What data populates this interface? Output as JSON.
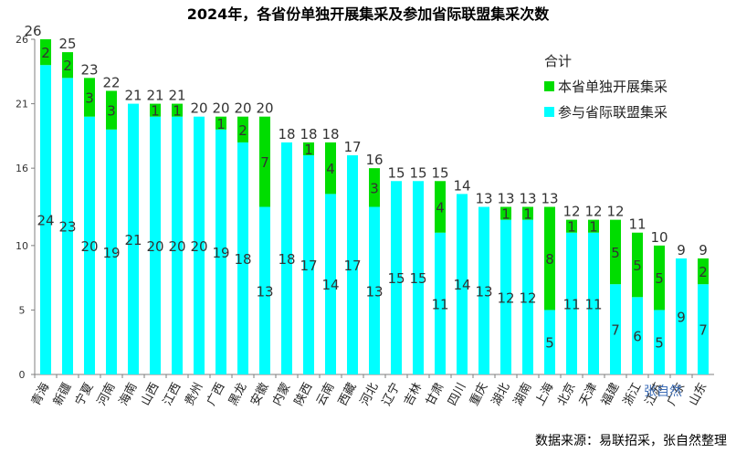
{
  "title": "2024年，各省份单独开展集采及参加省际联盟集采次数",
  "source": "数据来源：易联招采，张自然整理",
  "watermark": "张自然",
  "legend": {
    "total": "合计",
    "independent": "本省单独开展集采",
    "alliance": "参与省际联盟集采"
  },
  "colors": {
    "independent": "#00dd00",
    "alliance": "#00ffff",
    "text": "#333333",
    "axis": "#7f7f7f",
    "watermark": "#3f6fb8"
  },
  "chart_data": {
    "type": "bar",
    "stacked": true,
    "categories": [
      "青海",
      "新疆",
      "宁夏",
      "河南",
      "海南",
      "山西",
      "江西",
      "贵州",
      "广西",
      "黑龙",
      "安徽",
      "内蒙",
      "陕西",
      "云南",
      "西藏",
      "河北",
      "辽宁",
      "吉林",
      "甘肃",
      "四川",
      "重庆",
      "湖北",
      "湖南",
      "上海",
      "北京",
      "天津",
      "福建",
      "浙江",
      "江苏",
      "广东",
      "山东"
    ],
    "series": [
      {
        "name": "参与省际联盟集采",
        "key": "alliance",
        "values": [
          24,
          23,
          20,
          19,
          21,
          20,
          20,
          20,
          19,
          18,
          13,
          18,
          17,
          14,
          17,
          13,
          15,
          15,
          11,
          14,
          13,
          12,
          12,
          5,
          11,
          11,
          7,
          6,
          5,
          9,
          7
        ]
      },
      {
        "name": "本省单独开展集采",
        "key": "independent",
        "values": [
          2,
          2,
          3,
          3,
          0,
          1,
          1,
          0,
          1,
          2,
          7,
          0,
          1,
          4,
          0,
          3,
          0,
          0,
          4,
          0,
          0,
          1,
          1,
          8,
          1,
          1,
          5,
          5,
          5,
          0,
          2
        ]
      }
    ],
    "totals": [
      26,
      25,
      23,
      22,
      21,
      21,
      21,
      20,
      20,
      20,
      20,
      18,
      18,
      18,
      17,
      16,
      15,
      15,
      15,
      14,
      13,
      13,
      13,
      13,
      12,
      12,
      12,
      11,
      10,
      9,
      9
    ],
    "yticks": [
      0,
      5,
      10,
      16,
      21,
      26
    ],
    "ylim": [
      0,
      26
    ],
    "grid": false,
    "legend_position": "top-right"
  }
}
